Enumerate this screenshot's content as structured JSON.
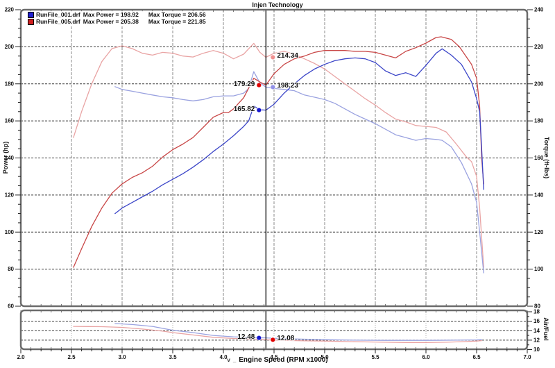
{
  "title": "Injen Technology",
  "x_axis": {
    "label": "Engine Speed (RPM x1000)",
    "prefix_marks": [
      "v",
      "_"
    ]
  },
  "legend": [
    {
      "file": "RunFile_001.drf",
      "max_power": "Max Power = 198.92",
      "max_torque": "Max Torque = 206.56",
      "color": "#2020d0"
    },
    {
      "file": "RunFile_005.drf",
      "max_power": "Max Power = 205.38",
      "max_torque": "Max Torque = 221.85",
      "color": "#d02020"
    }
  ],
  "axes": {
    "rpm": {
      "min": 2.0,
      "max": 7.0,
      "step": 0.5,
      "minor_step": 0.1
    },
    "power": {
      "label": "Power (hp)",
      "min": 60,
      "max": 220,
      "step": 20,
      "minor_step": 5
    },
    "torque": {
      "label": "Torque (ft-lbs)",
      "min": 80,
      "max": 240,
      "step": 20,
      "minor_step": 5
    },
    "af": {
      "label": "Air/Fuel",
      "min": 10,
      "max": 18,
      "step": 2,
      "minor_step": 1
    }
  },
  "cursor": {
    "rpm": 4.42,
    "readings": [
      {
        "series": "torque_red",
        "label": "214.34",
        "value": 214.34,
        "side": "right"
      },
      {
        "series": "power_red",
        "label": "179.29",
        "value": 179.29,
        "side": "left"
      },
      {
        "series": "torque_blue",
        "label": "198.23",
        "value": 198.23,
        "side": "right"
      },
      {
        "series": "power_blue",
        "label": "165.82",
        "value": 165.82,
        "side": "left"
      },
      {
        "series": "af_blue",
        "label": "12.48",
        "value": 12.48,
        "side": "left"
      },
      {
        "series": "af_red",
        "label": "12.08",
        "value": 12.08,
        "side": "right"
      }
    ]
  },
  "colors": {
    "power_blue": "#3c46c8",
    "torque_blue": "#9aa2e0",
    "power_red": "#c84646",
    "torque_red": "#e9a4a4",
    "dot_power_blue": "#1515d0",
    "dot_torque_blue": "#9090e8",
    "dot_power_red": "#e00000",
    "dot_torque_red": "#f09090",
    "frame": "#6b6b6b",
    "grid_v": "#8a8a8a",
    "grid_h": "#3a3a3a",
    "cursor": "#000000"
  },
  "chart_data": [
    {
      "type": "line",
      "title": "Injen Technology",
      "xlabel": "Engine Speed (RPM x1000)",
      "ylabel": "Power (hp)",
      "ylabel_right": "Torque (ft-lbs)",
      "xlim": [
        2.0,
        7.0
      ],
      "ylim": [
        60,
        220
      ],
      "ylim_right": [
        80,
        240
      ],
      "grid": true,
      "legend_position": "top-left",
      "series": [
        {
          "name": "torque_red",
          "legend": "RunFile_005.drf Torque",
          "axis": "right",
          "color": "#e9a4a4",
          "points": [
            [
              2.52,
              171
            ],
            [
              2.6,
              185
            ],
            [
              2.7,
              200
            ],
            [
              2.8,
              212
            ],
            [
              2.9,
              219
            ],
            [
              3.0,
              220.5
            ],
            [
              3.1,
              219
            ],
            [
              3.2,
              216.5
            ],
            [
              3.3,
              215.5
            ],
            [
              3.4,
              217
            ],
            [
              3.5,
              216.5
            ],
            [
              3.6,
              215
            ],
            [
              3.7,
              214.5
            ],
            [
              3.8,
              216.5
            ],
            [
              3.9,
              218
            ],
            [
              4.0,
              216.5
            ],
            [
              4.1,
              213.5
            ],
            [
              4.2,
              216
            ],
            [
              4.3,
              221.85
            ],
            [
              4.36,
              217
            ],
            [
              4.42,
              214.34
            ],
            [
              4.5,
              216.5
            ],
            [
              4.6,
              217.5
            ],
            [
              4.7,
              216
            ],
            [
              4.8,
              213.5
            ],
            [
              4.9,
              211
            ],
            [
              5.0,
              208
            ],
            [
              5.1,
              204
            ],
            [
              5.2,
              200
            ],
            [
              5.3,
              196
            ],
            [
              5.4,
              192
            ],
            [
              5.5,
              188.5
            ],
            [
              5.6,
              184.5
            ],
            [
              5.7,
              181
            ],
            [
              5.8,
              179.5
            ],
            [
              5.9,
              177.5
            ],
            [
              6.0,
              177
            ],
            [
              6.1,
              176.5
            ],
            [
              6.2,
              174
            ],
            [
              6.3,
              167.5
            ],
            [
              6.4,
              160.5
            ],
            [
              6.45,
              158
            ],
            [
              6.5,
              150
            ],
            [
              6.53,
              133
            ],
            [
              6.57,
              101
            ]
          ]
        },
        {
          "name": "torque_blue",
          "legend": "RunFile_001.drf Torque",
          "axis": "right",
          "color": "#9aa2e0",
          "points": [
            [
              2.93,
              198.5
            ],
            [
              3.0,
              197
            ],
            [
              3.1,
              196
            ],
            [
              3.2,
              195
            ],
            [
              3.3,
              194
            ],
            [
              3.4,
              193
            ],
            [
              3.5,
              192.5
            ],
            [
              3.6,
              191.5
            ],
            [
              3.7,
              190.8
            ],
            [
              3.8,
              191.5
            ],
            [
              3.9,
              193
            ],
            [
              4.0,
              193.5
            ],
            [
              4.1,
              193.5
            ],
            [
              4.2,
              195
            ],
            [
              4.25,
              197.5
            ],
            [
              4.3,
              206.56
            ],
            [
              4.36,
              200.5
            ],
            [
              4.42,
              198.23
            ],
            [
              4.5,
              197.5
            ],
            [
              4.6,
              197
            ],
            [
              4.7,
              196.3
            ],
            [
              4.8,
              194
            ],
            [
              4.9,
              192.8
            ],
            [
              5.0,
              191.5
            ],
            [
              5.1,
              189.5
            ],
            [
              5.2,
              186.5
            ],
            [
              5.3,
              183.5
            ],
            [
              5.4,
              181
            ],
            [
              5.5,
              178.5
            ],
            [
              5.6,
              175.5
            ],
            [
              5.7,
              172.5
            ],
            [
              5.8,
              171
            ],
            [
              5.9,
              169.5
            ],
            [
              6.0,
              170.5
            ],
            [
              6.1,
              170
            ],
            [
              6.16,
              169.5
            ],
            [
              6.25,
              166
            ],
            [
              6.35,
              157.5
            ],
            [
              6.45,
              146
            ],
            [
              6.5,
              136
            ],
            [
              6.53,
              120
            ],
            [
              6.57,
              98
            ]
          ]
        },
        {
          "name": "power_red",
          "legend": "RunFile_005.drf Power",
          "axis": "left",
          "color": "#c84646",
          "points": [
            [
              2.52,
              81
            ],
            [
              2.6,
              91
            ],
            [
              2.7,
              103
            ],
            [
              2.8,
              113
            ],
            [
              2.9,
              121
            ],
            [
              3.0,
              126
            ],
            [
              3.1,
              129.5
            ],
            [
              3.2,
              132
            ],
            [
              3.3,
              135.5
            ],
            [
              3.4,
              140.5
            ],
            [
              3.5,
              144.5
            ],
            [
              3.6,
              147.5
            ],
            [
              3.7,
              151
            ],
            [
              3.8,
              156.5
            ],
            [
              3.9,
              162
            ],
            [
              4.0,
              164.5
            ],
            [
              4.05,
              164.5
            ],
            [
              4.1,
              166.5
            ],
            [
              4.2,
              172.5
            ],
            [
              4.3,
              183
            ],
            [
              4.36,
              181
            ],
            [
              4.42,
              179.29
            ],
            [
              4.5,
              185.5
            ],
            [
              4.6,
              190.5
            ],
            [
              4.7,
              193.5
            ],
            [
              4.8,
              195
            ],
            [
              4.9,
              197
            ],
            [
              5.0,
              198
            ],
            [
              5.1,
              198
            ],
            [
              5.2,
              198
            ],
            [
              5.3,
              197.5
            ],
            [
              5.4,
              197.5
            ],
            [
              5.5,
              197
            ],
            [
              5.6,
              195.5
            ],
            [
              5.7,
              194
            ],
            [
              5.8,
              197.5
            ],
            [
              5.9,
              199.5
            ],
            [
              6.0,
              202
            ],
            [
              6.1,
              205
            ],
            [
              6.15,
              205.38
            ],
            [
              6.25,
              204
            ],
            [
              6.33,
              200
            ],
            [
              6.45,
              190.5
            ],
            [
              6.5,
              183
            ],
            [
              6.53,
              168
            ],
            [
              6.55,
              140
            ],
            [
              6.57,
              126
            ]
          ]
        },
        {
          "name": "power_blue",
          "legend": "RunFile_001.drf Power",
          "axis": "left",
          "color": "#3c46c8",
          "points": [
            [
              2.93,
              110
            ],
            [
              3.0,
              113
            ],
            [
              3.1,
              116
            ],
            [
              3.2,
              119
            ],
            [
              3.3,
              122
            ],
            [
              3.4,
              125.5
            ],
            [
              3.5,
              128.5
            ],
            [
              3.6,
              131.5
            ],
            [
              3.7,
              135
            ],
            [
              3.8,
              139
            ],
            [
              3.9,
              143.5
            ],
            [
              4.0,
              147.5
            ],
            [
              4.1,
              152
            ],
            [
              4.2,
              157
            ],
            [
              4.25,
              160
            ],
            [
              4.3,
              168
            ],
            [
              4.36,
              166
            ],
            [
              4.42,
              165.82
            ],
            [
              4.5,
              169
            ],
            [
              4.6,
              175
            ],
            [
              4.7,
              180
            ],
            [
              4.8,
              184.5
            ],
            [
              4.9,
              188
            ],
            [
              5.0,
              190.5
            ],
            [
              5.1,
              192.5
            ],
            [
              5.2,
              193.5
            ],
            [
              5.3,
              194
            ],
            [
              5.4,
              193.5
            ],
            [
              5.5,
              191.5
            ],
            [
              5.6,
              187
            ],
            [
              5.7,
              184.5
            ],
            [
              5.8,
              186
            ],
            [
              5.9,
              184
            ],
            [
              6.0,
              190
            ],
            [
              6.1,
              196.5
            ],
            [
              6.16,
              198.92
            ],
            [
              6.25,
              195.5
            ],
            [
              6.35,
              190.5
            ],
            [
              6.45,
              181
            ],
            [
              6.5,
              172
            ],
            [
              6.53,
              165
            ],
            [
              6.55,
              145
            ],
            [
              6.57,
              123
            ]
          ]
        }
      ]
    },
    {
      "type": "line",
      "xlabel": "Engine Speed (RPM x1000)",
      "ylabel_right": "Air/Fuel",
      "xlim": [
        2.0,
        7.0
      ],
      "ylim_right": [
        10,
        18
      ],
      "grid": true,
      "series": [
        {
          "name": "af_blue",
          "legend": "RunFile_001.drf Air/Fuel",
          "axis": "right",
          "color": "#9aa2e0",
          "points": [
            [
              2.93,
              15.5
            ],
            [
              3.1,
              15.3
            ],
            [
              3.3,
              14.9
            ],
            [
              3.5,
              14.1
            ],
            [
              3.7,
              13.6
            ],
            [
              3.9,
              13.0
            ],
            [
              4.1,
              12.7
            ],
            [
              4.3,
              12.55
            ],
            [
              4.42,
              12.48
            ],
            [
              4.6,
              12.3
            ],
            [
              4.8,
              12.2
            ],
            [
              5.0,
              12.1
            ],
            [
              5.3,
              12.0
            ],
            [
              5.6,
              11.95
            ],
            [
              6.0,
              11.95
            ],
            [
              6.3,
              12.0
            ],
            [
              6.5,
              12.05
            ],
            [
              6.55,
              12.1
            ]
          ]
        },
        {
          "name": "af_red",
          "legend": "RunFile_005.drf Air/Fuel",
          "axis": "right",
          "color": "#e9a4a4",
          "points": [
            [
              2.52,
              14.9
            ],
            [
              2.8,
              14.85
            ],
            [
              3.0,
              14.7
            ],
            [
              3.2,
              14.35
            ],
            [
              3.4,
              13.9
            ],
            [
              3.5,
              13.6
            ],
            [
              3.7,
              13.1
            ],
            [
              3.9,
              12.6
            ],
            [
              4.1,
              12.35
            ],
            [
              4.3,
              12.2
            ],
            [
              4.42,
              12.08
            ],
            [
              4.6,
              11.95
            ],
            [
              4.8,
              11.85
            ],
            [
              5.0,
              11.8
            ],
            [
              5.2,
              11.7
            ],
            [
              5.5,
              11.6
            ],
            [
              5.8,
              11.5
            ],
            [
              6.0,
              11.5
            ],
            [
              6.2,
              11.55
            ],
            [
              6.4,
              11.7
            ],
            [
              6.5,
              11.8
            ],
            [
              6.55,
              11.9
            ]
          ]
        }
      ]
    }
  ]
}
